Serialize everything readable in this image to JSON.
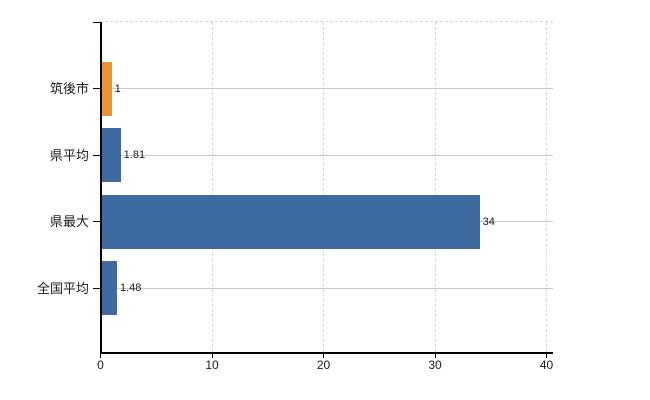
{
  "chart_data": {
    "type": "bar",
    "orientation": "horizontal",
    "categories": [
      "筑後市",
      "県平均",
      "県最大",
      "全国平均"
    ],
    "values": [
      1,
      1.81,
      34,
      1.48
    ],
    "value_labels": [
      "1",
      "1.81",
      "34",
      "1.48"
    ],
    "bar_colors": [
      "#EB9332",
      "#3D6BA1",
      "#3D6BA1",
      "#3D6BA1"
    ],
    "xlim": [
      0,
      40
    ],
    "x_ticks": [
      0,
      10,
      20,
      30,
      40
    ],
    "x_tick_labels": [
      "0",
      "10",
      "20",
      "30",
      "40"
    ],
    "grid": {
      "vertical_gridlines": "dashed at each x tick",
      "top_border": "dashed",
      "category_center_lines": true
    },
    "legend": "none"
  },
  "colors": {
    "highlight_bar": "#EB9332",
    "default_bar": "#3D6BA1",
    "dashed_gridline": "#D6D6D6",
    "category_line": "#C9C9C9",
    "axis": "#000000",
    "text": "#1A1A1A",
    "background": "#FFFFFF"
  }
}
